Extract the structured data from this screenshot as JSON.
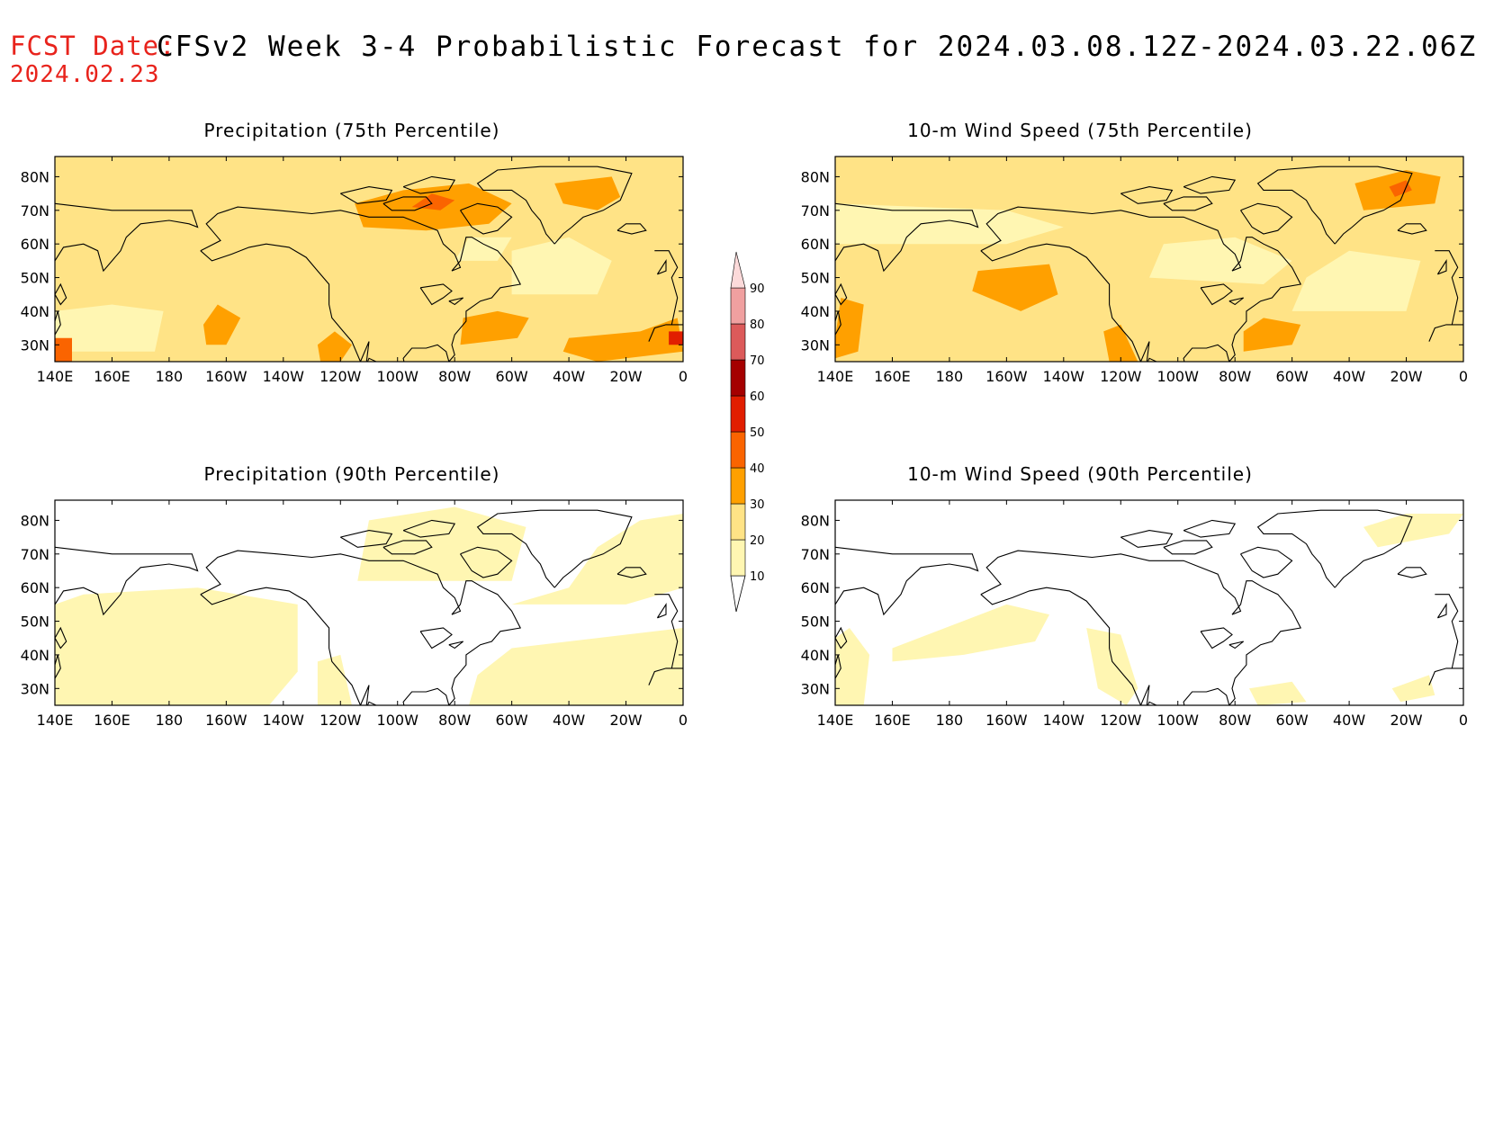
{
  "header": {
    "fcst_label": "FCST Date:",
    "fcst_date": "2024.02.23",
    "title": "CFSv2 Week 3-4 Probabilistic Forecast for 2024.03.08.12Z-2024.03.22.06Z"
  },
  "panels": [
    {
      "title": "Precipitation (75th Percentile)",
      "intensity": "high"
    },
    {
      "title": "10-m Wind Speed (75th Percentile)",
      "intensity": "high"
    },
    {
      "title": "Precipitation (90th Percentile)",
      "intensity": "low"
    },
    {
      "title": "10-m Wind Speed (90th Percentile)",
      "intensity": "low"
    }
  ],
  "axes": {
    "lon_labels": [
      "140E",
      "160E",
      "180",
      "160W",
      "140W",
      "120W",
      "100W",
      "80W",
      "60W",
      "40W",
      "20W",
      "0"
    ],
    "lat_labels": [
      "80N",
      "70N",
      "60N",
      "50N",
      "40N",
      "30N"
    ],
    "lon_range": [
      140,
      360
    ],
    "lat_range": [
      25,
      86
    ]
  },
  "colorbar": {
    "levels": [
      "10",
      "20",
      "30",
      "40",
      "50",
      "60",
      "70",
      "80",
      "90"
    ],
    "colors": [
      "#fff6b2",
      "#ffe386",
      "#ffa000",
      "#fa6400",
      "#e11e00",
      "#a50000",
      "#dc5a5a",
      "#f0a0a0",
      "#fcdada"
    ]
  },
  "palette": {
    "land_outline": "#000000",
    "fill_10": "#fff6b2",
    "fill_20": "#ffe386",
    "fill_30": "#ffa000",
    "fill_40": "#fa6400",
    "fill_50": "#e11e00"
  }
}
